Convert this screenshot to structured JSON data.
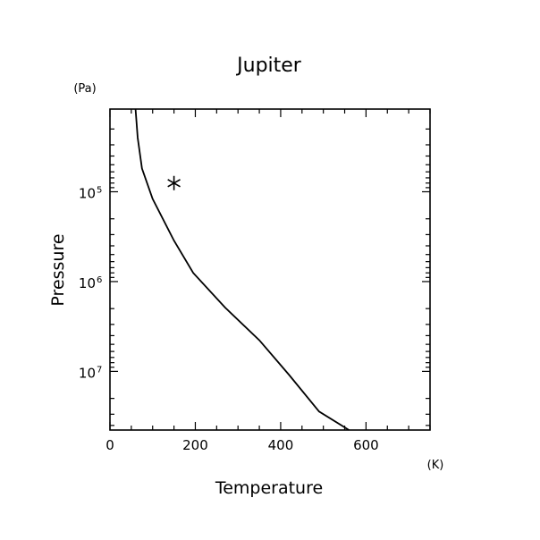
{
  "chart_data": {
    "type": "line",
    "title": "Jupiter",
    "xlabel": "Temperature",
    "ylabel": "Pressure",
    "x_unit": "(K)",
    "y_unit": "(Pa)",
    "xlim": [
      0,
      750
    ],
    "ylim": [
      12000,
      45000000
    ],
    "yscale": "log",
    "x_ticks": [
      0,
      200,
      400,
      600
    ],
    "y_ticks": [
      {
        "value": 100000,
        "base": "10",
        "exp": "5"
      },
      {
        "value": 1000000,
        "base": "10",
        "exp": "6"
      },
      {
        "value": 10000000,
        "base": "10",
        "exp": "7"
      }
    ],
    "series": [
      {
        "x": [
          60,
          65,
          75,
          100,
          150,
          195,
          270,
          350,
          420,
          490,
          560
        ],
        "y": [
          12000,
          25000,
          55000,
          120000,
          350000,
          800000,
          1950000,
          4500000,
          11000000,
          28000000,
          45000000
        ]
      }
    ],
    "marker": {
      "x": 150,
      "y": 80000,
      "symbol": "asterisk"
    },
    "grid": false
  }
}
